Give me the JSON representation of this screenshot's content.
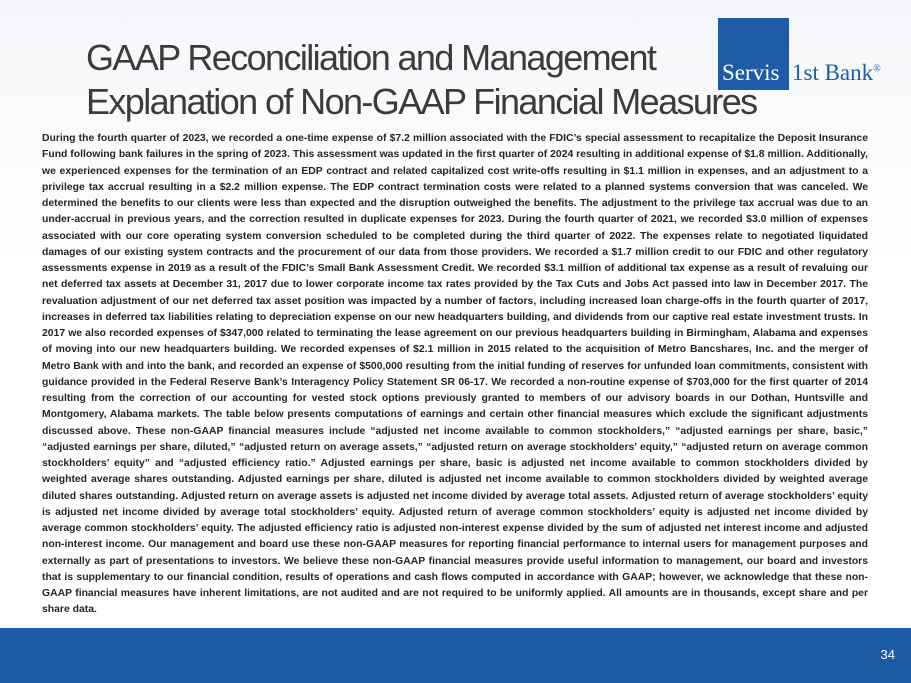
{
  "header": {
    "title_lines": [
      "GAAP Reconciliation and Management",
      "Explanation of Non-GAAP Financial Measures"
    ]
  },
  "logo": {
    "box_text": "Servis",
    "text": "1st Bank",
    "mark": "®"
  },
  "body": {
    "paragraph": "During the fourth quarter of 2023, we recorded a one-time expense of $7.2 million associated with the FDIC’s special assessment to recapitalize the Deposit Insurance Fund following bank failures in the spring of 2023. This assessment was updated in the first quarter of 2024 resulting in additional expense of $1.8 million. Additionally, we experienced expenses for the termination of an EDP contract and related capitalized cost write-offs resulting in $1.1 million in expenses, and an adjustment to a privilege tax accrual resulting in a $2.2 million expense. The EDP contract termination costs were related to a planned systems conversion that was canceled. We determined the benefits to our clients were less than expected and the disruption outweighed the benefits. The adjustment to the privilege tax accrual was due to an under-accrual in previous years, and the correction resulted in duplicate expenses for 2023. During the fourth quarter of 2021, we recorded $3.0 million of expenses associated with our core operating system conversion scheduled to be completed during the third quarter of 2022.  The expenses relate to negotiated liquidated damages of our existing system contracts and the procurement of our data from those providers. We recorded a $1.7 million credit to our FDIC and other regulatory assessments expense in 2019 as a result of the FDIC’s Small Bank Assessment Credit.  We recorded $3.1 million of additional tax expense as a result of revaluing our net deferred tax assets at December 31, 2017 due to lower corporate income tax rates provided by the Tax Cuts and Jobs Act passed into law in December 2017.  The revaluation adjustment of our net deferred tax asset position was impacted by a number of factors, including increased loan charge-offs in the fourth quarter of 2017, increases in deferred tax liabilities relating to depreciation expense on our new headquarters building, and dividends from our captive real estate investment trusts.  In 2017 we also recorded expenses of $347,000 related to terminating the lease agreement on our previous headquarters building in Birmingham, Alabama and expenses of moving into our new headquarters building.  We recorded expenses of $2.1 million in 2015 related to the acquisition of Metro Bancshares, Inc. and the merger of Metro Bank with and into the bank, and recorded an expense of $500,000 resulting from the initial funding of reserves for unfunded loan commitments, consistent with guidance provided in the Federal Reserve Bank’s Interagency Policy Statement SR 06-17. We recorded a non-routine expense of $703,000 for the first quarter of 2014 resulting from the correction of our accounting for vested stock options previously granted to members of our advisory boards in our Dothan, Huntsville and Montgomery, Alabama markets. The table below presents computations of earnings and certain other financial measures which exclude the significant adjustments discussed above.  These non-GAAP financial measures include “adjusted net income available to common stockholders,” “adjusted earnings per share, basic,” “adjusted earnings per share, diluted,” “adjusted return on average assets,” “adjusted return on average stockholders’ equity,” “adjusted return on average common stockholders’ equity” and “adjusted efficiency ratio.”  Adjusted earnings per share, basic is adjusted net income available to common stockholders divided by weighted average shares outstanding.  Adjusted earnings per share, diluted is adjusted net income available to common stockholders divided by weighted average diluted shares outstanding.  Adjusted return on average assets is adjusted net income divided by average total assets.  Adjusted return of average stockholders’ equity is adjusted net income divided by average total stockholders’ equity.  Adjusted return of average common stockholders’ equity is adjusted net income divided by average common stockholders’ equity.  The adjusted efficiency ratio is adjusted non-interest expense divided by the sum of adjusted net interest income and adjusted non-interest income.  Our management and board use these non-GAAP measures for reporting financial performance to internal users for management purposes and externally as part of presentations to investors.  We believe these non-GAAP financial measures provide useful information to management, our board and investors that is supplementary to our financial condition, results of operations and cash flows computed in accordance with GAAP; however, we acknowledge that these non-GAAP financial measures have inherent limitations, are not audited and are not required to be uniformly applied.  All amounts are in thousands, except share and per share data."
  },
  "footer": {
    "page_number": "34"
  }
}
